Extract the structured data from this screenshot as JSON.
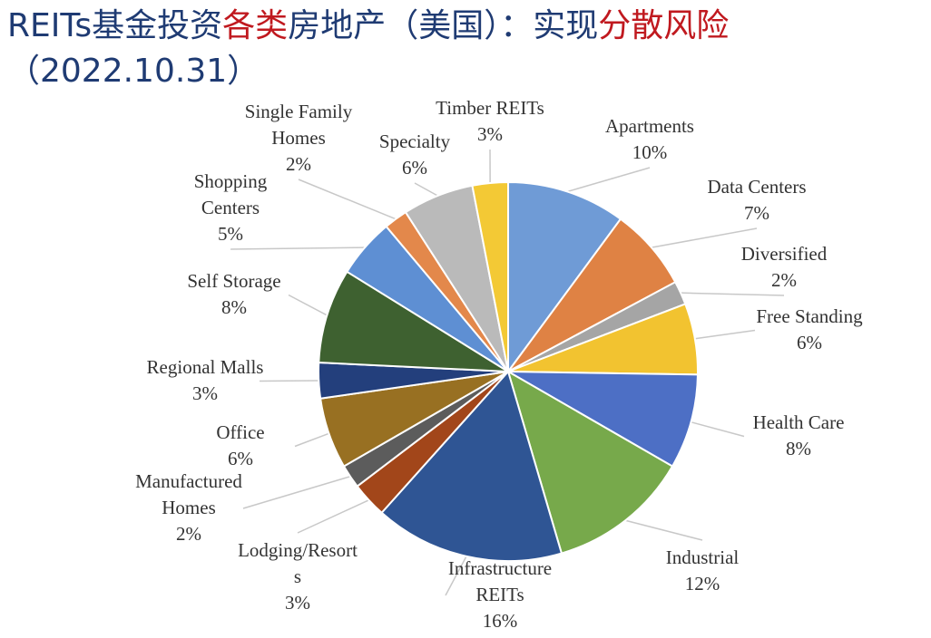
{
  "title": {
    "part1": "REITs基金投资",
    "part2": "各类",
    "part3": "房地产（美国）：实现",
    "part4": "分散风险",
    "line2": "（2022.10.31）"
  },
  "colors": {
    "title": "#1f3b73",
    "highlight": "#c0191f",
    "label": "#333333"
  },
  "chart_data": {
    "type": "pie",
    "slices": [
      {
        "label": [
          "Apartments"
        ],
        "pct": "10%",
        "value": 10,
        "color": "#6f9bd6"
      },
      {
        "label": [
          "Data Centers"
        ],
        "pct": "7%",
        "value": 7,
        "color": "#df8244"
      },
      {
        "label": [
          "Diversified"
        ],
        "pct": "2%",
        "value": 2,
        "color": "#a5a5a5"
      },
      {
        "label": [
          "Free Standing"
        ],
        "pct": "6%",
        "value": 6,
        "color": "#f2c330"
      },
      {
        "label": [
          "Health Care"
        ],
        "pct": "8%",
        "value": 8,
        "color": "#4d6fc5"
      },
      {
        "label": [
          "Industrial"
        ],
        "pct": "12%",
        "value": 12,
        "color": "#77a94b"
      },
      {
        "label": [
          "Infrastructure",
          "REITs"
        ],
        "pct": "16%",
        "value": 16,
        "color": "#2f5594"
      },
      {
        "label": [
          "Lodging/Resort",
          "s"
        ],
        "pct": "3%",
        "value": 3,
        "color": "#a2461a"
      },
      {
        "label": [
          "Manufactured",
          "Homes"
        ],
        "pct": "2%",
        "value": 2,
        "color": "#5c5c5c"
      },
      {
        "label": [
          "Office"
        ],
        "pct": "6%",
        "value": 6,
        "color": "#987022"
      },
      {
        "label": [
          "Regional Malls"
        ],
        "pct": "3%",
        "value": 3,
        "color": "#233f7c"
      },
      {
        "label": [
          "Self Storage"
        ],
        "pct": "8%",
        "value": 8,
        "color": "#3e6130"
      },
      {
        "label": [
          "Shopping",
          "Centers"
        ],
        "pct": "5%",
        "value": 5,
        "color": "#5e8fd3"
      },
      {
        "label": [
          "Single Family",
          "Homes"
        ],
        "pct": "2%",
        "value": 2,
        "color": "#e3884b"
      },
      {
        "label": [
          "Specialty"
        ],
        "pct": "6%",
        "value": 6,
        "color": "#bababa"
      },
      {
        "label": [
          "Timber REITs"
        ],
        "pct": "3%",
        "value": 3,
        "color": "#f3c935"
      }
    ]
  }
}
